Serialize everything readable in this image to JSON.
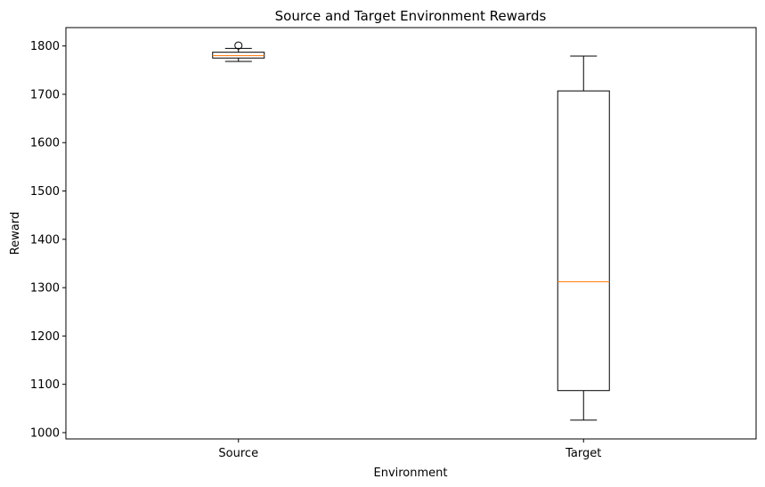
{
  "chart_data": {
    "type": "box",
    "title": "Source and Target Environment Rewards",
    "xlabel": "Environment",
    "ylabel": "Reward",
    "ylim": [
      987,
      1838
    ],
    "yticks": [
      1000,
      1100,
      1200,
      1300,
      1400,
      1500,
      1600,
      1700,
      1800
    ],
    "categories": [
      "Source",
      "Target"
    ],
    "boxes": [
      {
        "category": "Source",
        "whisker_low": 1768,
        "q1": 1775,
        "median": 1780,
        "q3": 1787,
        "whisker_high": 1795,
        "outliers": [
          1801
        ]
      },
      {
        "category": "Target",
        "whisker_low": 1026,
        "q1": 1087,
        "median": 1312,
        "q3": 1707,
        "whisker_high": 1779,
        "outliers": []
      }
    ],
    "grid": false,
    "colors": {
      "box": "#000000",
      "median": "#ff7f0e",
      "background": "#ffffff"
    }
  }
}
